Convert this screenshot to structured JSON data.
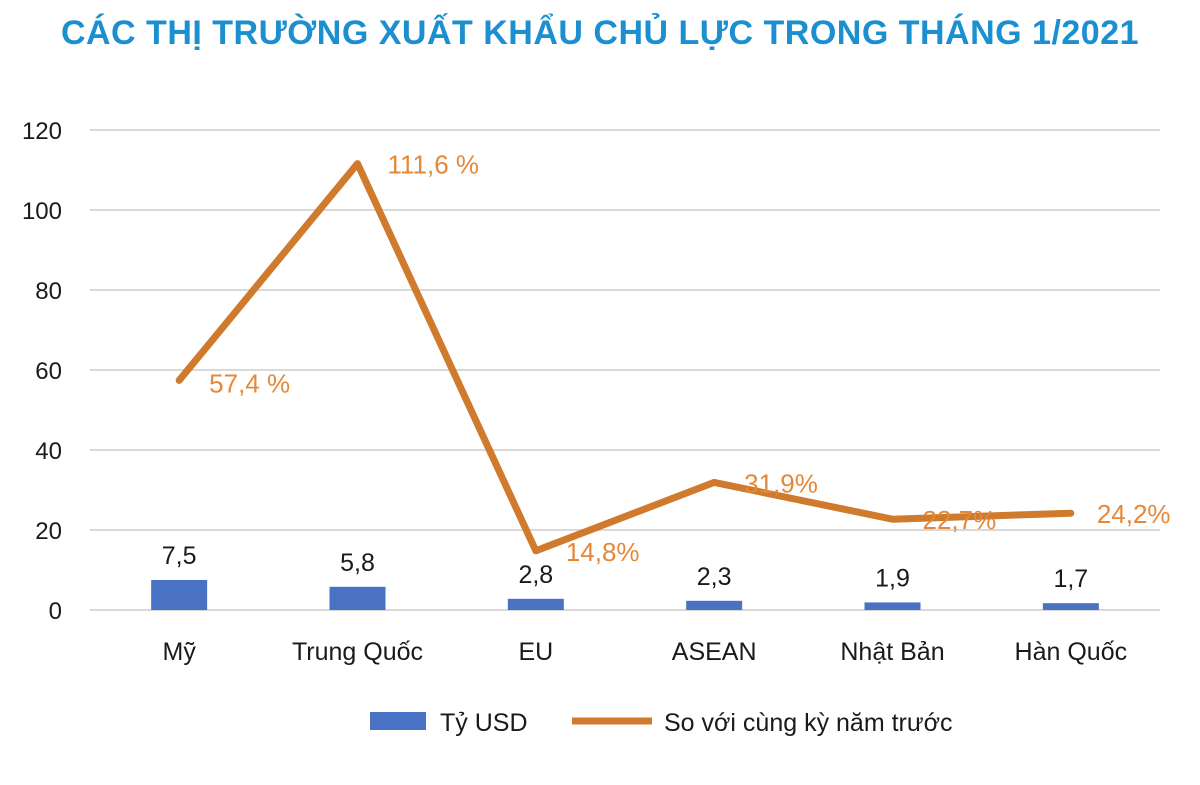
{
  "title": "CÁC THỊ TRƯỜNG XUẤT KHẨU CHỦ LỰC TRONG THÁNG 1/2021",
  "colors": {
    "title": "#1b8fd0",
    "bar": "#4a72c4",
    "line": "#cf7a2c",
    "line_label": "#e4883a",
    "grid": "#d9d9d9"
  },
  "chart_data": {
    "type": "bar",
    "title": "CÁC THỊ TRƯỜNG XUẤT KHẨU CHỦ LỰC TRONG THÁNG 1/2021",
    "categories": [
      "Mỹ",
      "Trung Quốc",
      "EU",
      "ASEAN",
      "Nhật Bản",
      "Hàn Quốc"
    ],
    "series": [
      {
        "name": "Tỷ USD",
        "type": "bar",
        "values": [
          7.5,
          5.8,
          2.8,
          2.3,
          1.9,
          1.7
        ],
        "labels": [
          "7,5",
          "5,8",
          "2,8",
          "2,3",
          "1,9",
          "1,7"
        ]
      },
      {
        "name": "So với cùng kỳ năm trước",
        "type": "line",
        "values": [
          57.4,
          111.6,
          14.8,
          31.9,
          22.7,
          24.2
        ],
        "labels": [
          "57,4 %",
          "111,6 %",
          "14,8%",
          "31,9%",
          "22,7%",
          "24,2%"
        ]
      }
    ],
    "yticks": [
      "0",
      "20",
      "40",
      "60",
      "80",
      "100",
      "120"
    ],
    "ylim": [
      0,
      120
    ],
    "grid": true,
    "legend": "bottom"
  }
}
